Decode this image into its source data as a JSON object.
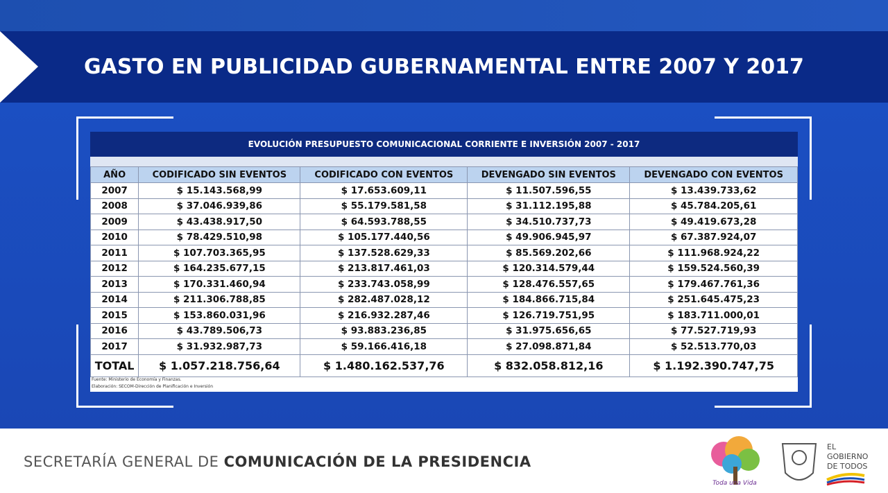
{
  "header": {
    "title": "GASTO EN PUBLICIDAD GUBERNAMENTAL ENTRE 2007 Y 2017"
  },
  "table": {
    "title": "EVOLUCIÓN PRESUPUESTO COMUNICACIONAL CORRIENTE E INVERSIÓN 2007 - 2017",
    "columns": [
      "AÑO",
      "CODIFICADO SIN EVENTOS",
      "CODIFICADO CON EVENTOS",
      "DEVENGADO SIN EVENTOS",
      "DEVENGADO CON EVENTOS"
    ],
    "rows": [
      [
        "2007",
        "$ 15.143.568,99",
        "$ 17.653.609,11",
        "$ 11.507.596,55",
        "$ 13.439.733,62"
      ],
      [
        "2008",
        "$ 37.046.939,86",
        "$ 55.179.581,58",
        "$ 31.112.195,88",
        "$ 45.784.205,61"
      ],
      [
        "2009",
        "$ 43.438.917,50",
        "$ 64.593.788,55",
        "$ 34.510.737,73",
        "$ 49.419.673,28"
      ],
      [
        "2010",
        "$ 78.429.510,98",
        "$ 105.177.440,56",
        "$ 49.906.945,97",
        "$ 67.387.924,07"
      ],
      [
        "2011",
        "$ 107.703.365,95",
        "$ 137.528.629,33",
        "$ 85.569.202,66",
        "$ 111.968.924,22"
      ],
      [
        "2012",
        "$ 164.235.677,15",
        "$ 213.817.461,03",
        "$ 120.314.579,44",
        "$ 159.524.560,39"
      ],
      [
        "2013",
        "$ 170.331.460,94",
        "$ 233.743.058,99",
        "$ 128.476.557,65",
        "$ 179.467.761,36"
      ],
      [
        "2014",
        "$ 211.306.788,85",
        "$ 282.487.028,12",
        "$ 184.866.715,84",
        "$ 251.645.475,23"
      ],
      [
        "2015",
        "$ 153.860.031,96",
        "$ 216.932.287,46",
        "$ 126.719.751,95",
        "$ 183.711.000,01"
      ],
      [
        "2016",
        "$ 43.789.506,73",
        "$ 93.883.236,85",
        "$ 31.975.656,65",
        "$ 77.527.719,93"
      ],
      [
        "2017",
        "$ 31.932.987,73",
        "$ 59.166.416,18",
        "$ 27.098.871,84",
        "$ 52.513.770,03"
      ]
    ],
    "total": [
      "TOTAL",
      "$ 1.057.218.756,64",
      "$ 1.480.162.537,76",
      "$ 832.058.812,16",
      "$ 1.192.390.747,75"
    ],
    "notes": [
      "Fuente: Ministerio de Economía y Finanzas.",
      "Elaboración: SECOM-Dirección de Planificación e Inversión"
    ]
  },
  "footer": {
    "org_light": "SECRETARÍA GENERAL DE",
    "org_bold": "COMUNICACIÓN DE LA PRESIDENCIA",
    "logo1": "Toda una Vida",
    "logo2": [
      "EL",
      "GOBIERNO",
      "DE TODOS"
    ]
  }
}
